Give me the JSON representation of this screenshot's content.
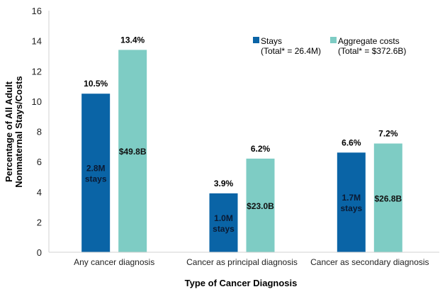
{
  "chart_data": {
    "type": "bar",
    "title": "",
    "xlabel": "Type of Cancer Diagnosis",
    "ylabel_lines": [
      "Percentage of All Adult",
      "Nonmaternal Stays/Costs"
    ],
    "ylim": [
      0,
      16
    ],
    "yticks": [
      0,
      2,
      4,
      6,
      8,
      10,
      12,
      14,
      16
    ],
    "grid": false,
    "legend_placement": "top-right",
    "categories": [
      "Any cancer diagnosis",
      "Cancer as principal diagnosis",
      "Cancer as secondary diagnosis"
    ],
    "series": [
      {
        "name": "Stays",
        "legend_sub": "(Total* = 26.4M)",
        "color": "#0A64A6",
        "values": [
          10.5,
          3.9,
          6.6
        ],
        "value_labels": [
          "10.5%",
          "3.9%",
          "6.6%"
        ],
        "inner_labels": [
          [
            "2.8M",
            "stays"
          ],
          [
            "1.0M",
            "stays"
          ],
          [
            "1.7M",
            "stays"
          ]
        ]
      },
      {
        "name": "Aggregate costs",
        "legend_sub": "(Total* = $372.6B)",
        "color": "#7ECCC4",
        "values": [
          13.4,
          6.2,
          7.2
        ],
        "value_labels": [
          "13.4%",
          "6.2%",
          "7.2%"
        ],
        "inner_labels": [
          [
            "$49.8B"
          ],
          [
            "$23.0B"
          ],
          [
            "$26.8B"
          ]
        ]
      }
    ]
  }
}
